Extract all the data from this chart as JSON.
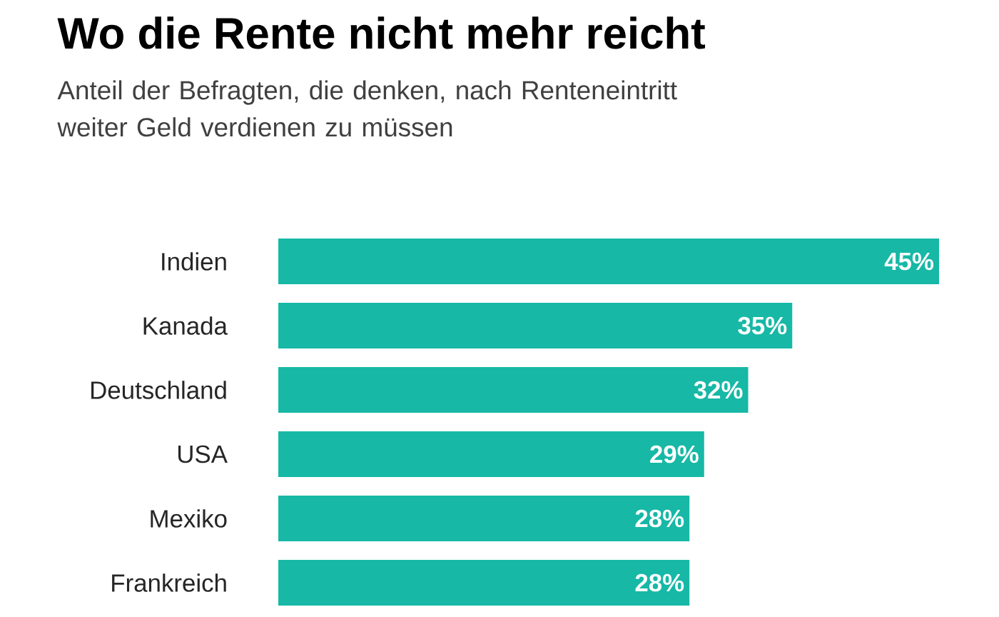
{
  "chart_data": {
    "type": "bar",
    "orientation": "horizontal",
    "title": "Wo die Rente nicht mehr reicht",
    "subtitle": "Anteil der Befragten, die denken, nach Renteneintritt weiter Geld verdienen zu müssen",
    "categories": [
      "Indien",
      "Kanada",
      "Deutschland",
      "USA",
      "Mexiko",
      "Frankreich"
    ],
    "values": [
      45,
      35,
      32,
      29,
      28,
      28
    ],
    "value_labels": [
      "45%",
      "35%",
      "32%",
      "29%",
      "28%",
      "28%"
    ],
    "color": "#17b8a6"
  }
}
